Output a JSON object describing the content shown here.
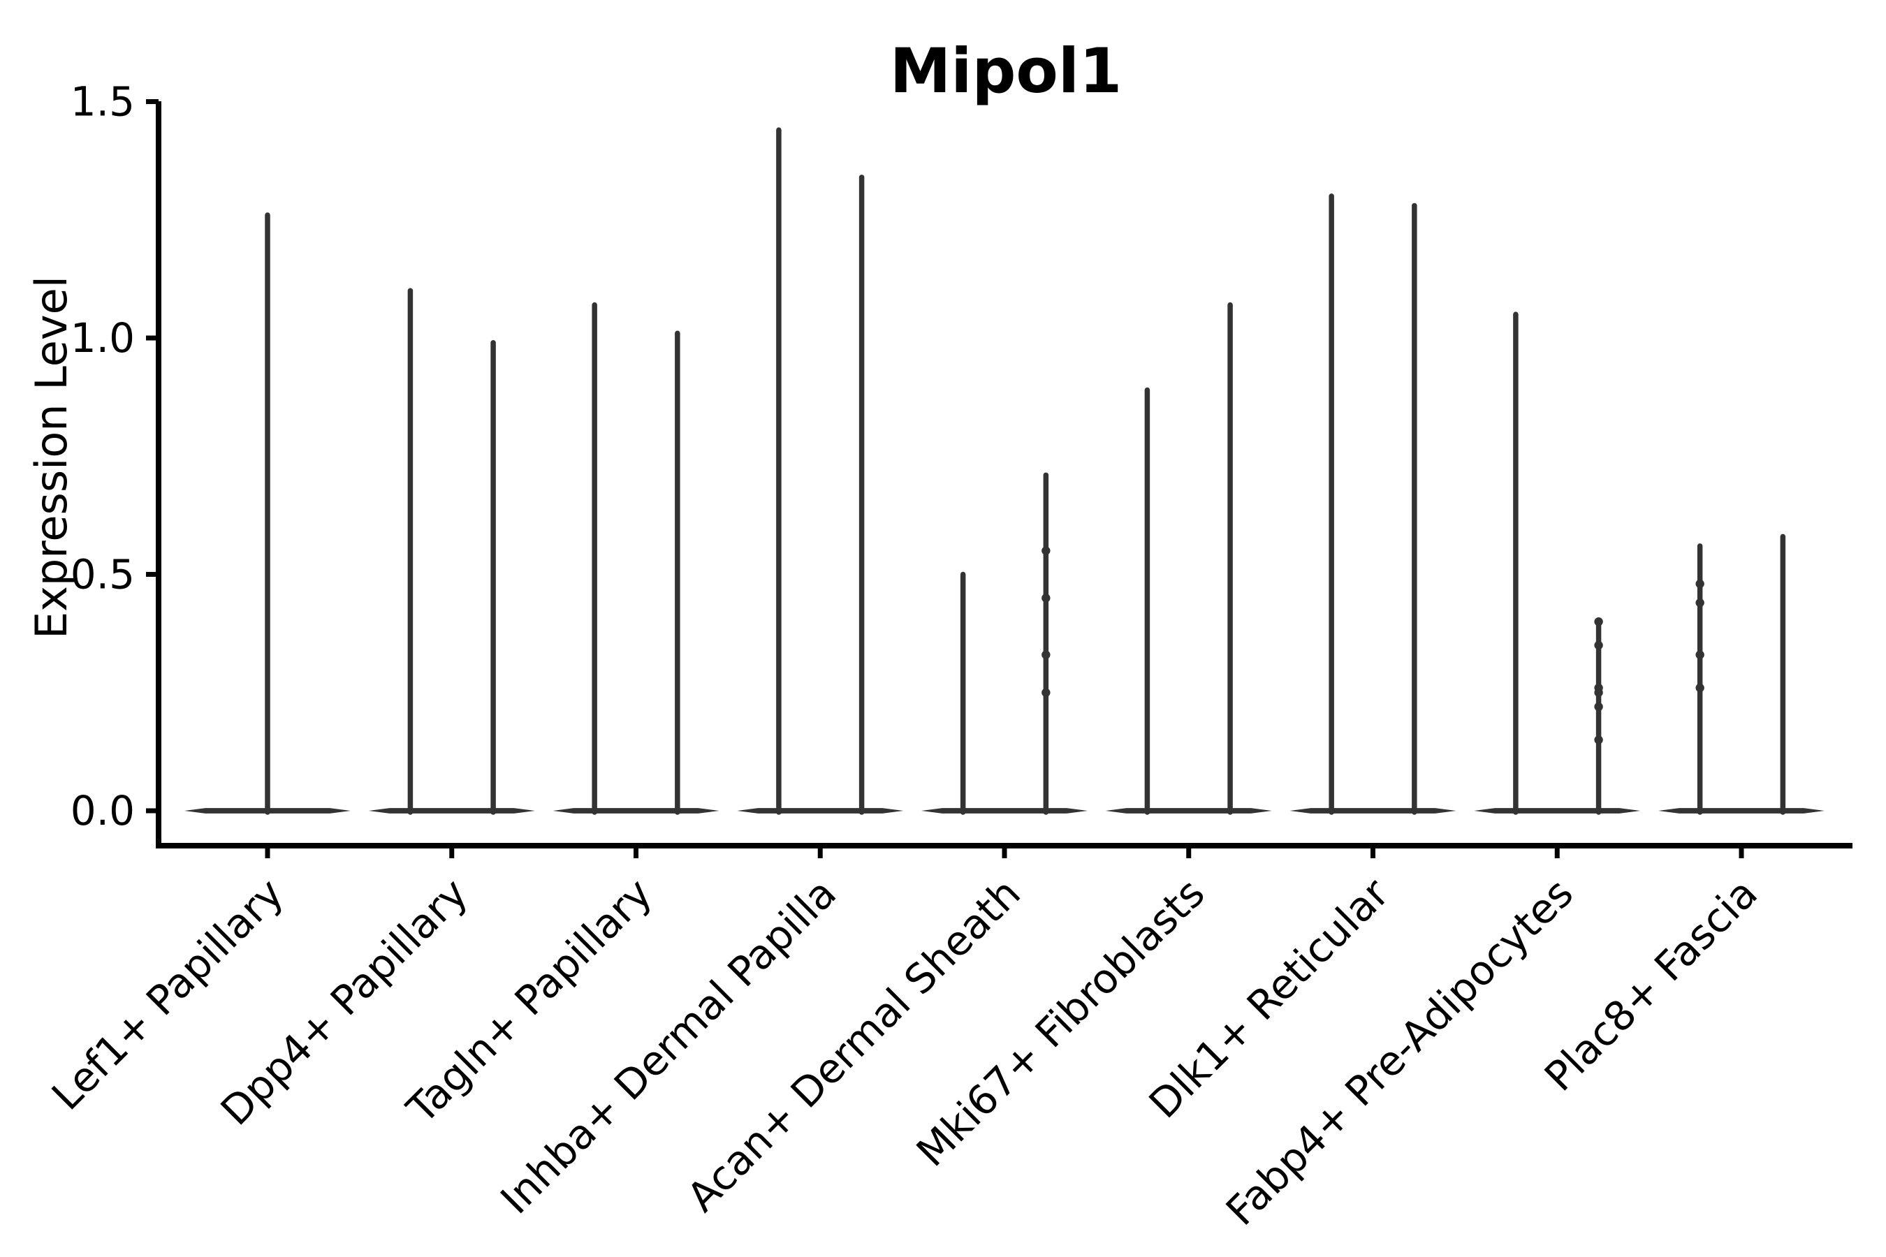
{
  "figure_title": "Mipol1",
  "chart_data": {
    "type": "violin",
    "title": "Mipol1",
    "xlabel": "",
    "ylabel": "Expression Level",
    "yticks": [
      0.0,
      0.5,
      1.0,
      1.5
    ],
    "ylim": [
      -0.07,
      1.5
    ],
    "grid": false,
    "legend": "none",
    "violin_color": "#333333",
    "axis_color": "#000000",
    "note": "Each violin is almost entirely collapsed at expression 0 (flat base) with a thin spike rising to the maximum expression value; first category has a single full-width violin, all others have two half-width violins; small jitter points visible on some spikes.",
    "categories": [
      "Lef1+ Papillary",
      "Dpp4+ Papillary",
      "Tagln+ Papillary",
      "Inhba+ Dermal Papilla",
      "Acan+ Dermal Sheath",
      "Mki67+ Fibroblasts",
      "Dlk1+ Reticular",
      "Fabp4+ Pre-Adipocytes",
      "Plac8+ Fascia"
    ],
    "violins": [
      {
        "category": "Lef1+ Papillary",
        "spikes": [
          {
            "offset": 0.0,
            "max": 1.26
          }
        ]
      },
      {
        "category": "Dpp4+ Papillary",
        "spikes": [
          {
            "offset": -0.225,
            "max": 1.1
          },
          {
            "offset": 0.225,
            "max": 0.99
          }
        ]
      },
      {
        "category": "Tagln+ Papillary",
        "spikes": [
          {
            "offset": -0.225,
            "max": 1.07
          },
          {
            "offset": 0.225,
            "max": 1.01
          }
        ]
      },
      {
        "category": "Inhba+ Dermal Papilla",
        "spikes": [
          {
            "offset": -0.225,
            "max": 1.44
          },
          {
            "offset": 0.225,
            "max": 1.34
          }
        ]
      },
      {
        "category": "Acan+ Dermal Sheath",
        "spikes": [
          {
            "offset": -0.225,
            "max": 0.5
          },
          {
            "offset": 0.225,
            "max": 0.71,
            "points": [
              0.55,
              0.45,
              0.33,
              0.25
            ]
          }
        ]
      },
      {
        "category": "Mki67+ Fibroblasts",
        "spikes": [
          {
            "offset": -0.225,
            "max": 0.89
          },
          {
            "offset": 0.225,
            "max": 1.07
          }
        ]
      },
      {
        "category": "Dlk1+ Reticular",
        "spikes": [
          {
            "offset": -0.225,
            "max": 1.3
          },
          {
            "offset": 0.225,
            "max": 1.28
          }
        ]
      },
      {
        "category": "Fabp4+ Pre-Adipocytes",
        "spikes": [
          {
            "offset": -0.225,
            "max": 1.05
          },
          {
            "offset": 0.225,
            "max": 0.4,
            "points": [
              0.4,
              0.35,
              0.26,
              0.25,
              0.22,
              0.15
            ]
          }
        ]
      },
      {
        "category": "Plac8+ Fascia",
        "spikes": [
          {
            "offset": -0.225,
            "max": 0.56,
            "points": [
              0.48,
              0.44,
              0.33,
              0.26
            ]
          },
          {
            "offset": 0.225,
            "max": 0.58
          }
        ]
      }
    ]
  }
}
